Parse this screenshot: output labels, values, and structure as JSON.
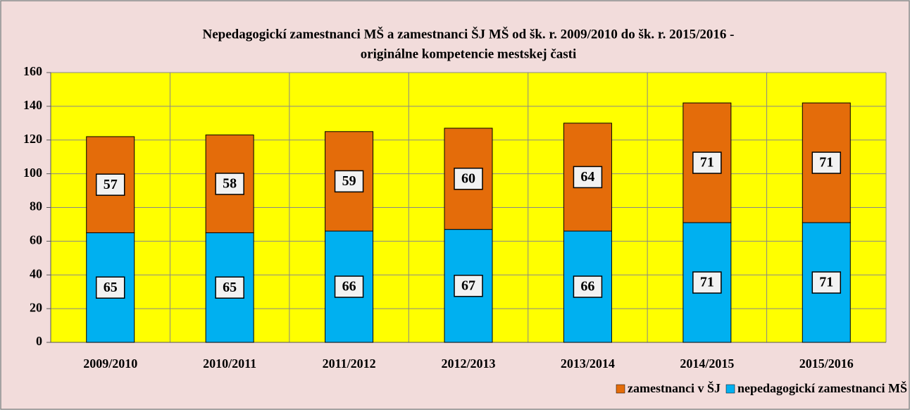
{
  "chart_data": {
    "type": "stacked_bar",
    "title": [
      "Nepedagogickí zamestnanci MŠ a zamestnanci ŠJ MŠ od šk. r. 2009/2010 do šk. r. 2015/2016 -",
      "originálne kompetencie mestskej časti"
    ],
    "categories": [
      "2009/2010",
      "2010/2011",
      "2011/2012",
      "2012/2013",
      "2013/2014",
      "2014/2015",
      "2015/2016"
    ],
    "series": [
      {
        "name": "nepedagogickí zamestnanci MŠ",
        "color": "#00b0f0",
        "values": [
          65,
          65,
          66,
          67,
          66,
          71,
          71
        ]
      },
      {
        "name": "zamestnanci v ŠJ",
        "color": "#e46c0a",
        "values": [
          57,
          58,
          59,
          60,
          64,
          71,
          71
        ]
      }
    ],
    "ylim": [
      0,
      160
    ],
    "yticks": [
      0,
      20,
      40,
      60,
      80,
      100,
      120,
      140,
      160
    ],
    "grid": true,
    "legend": "bottom-right"
  }
}
